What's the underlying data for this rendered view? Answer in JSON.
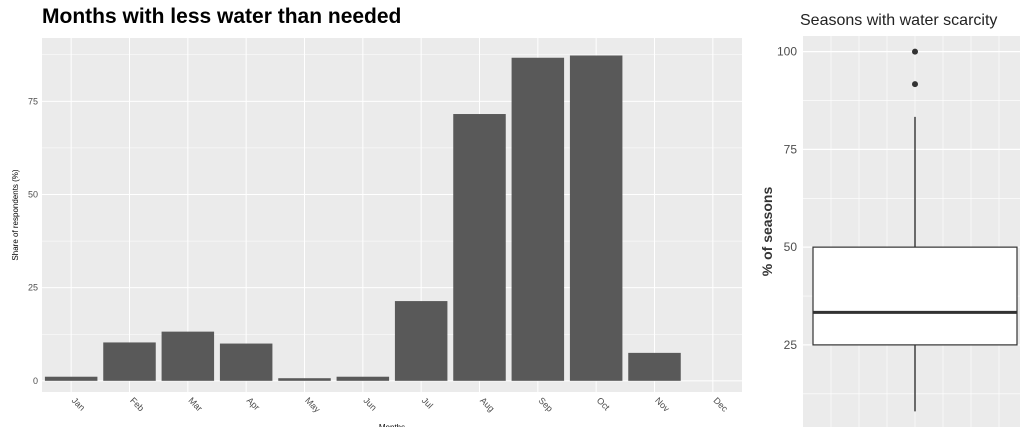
{
  "chart_data": [
    {
      "type": "bar",
      "title": "Months with less water than needed",
      "xlabel": "Months",
      "ylabel": "Share of respondents (%)",
      "categories": [
        "Jan",
        "Feb",
        "Mar",
        "Apr",
        "May",
        "Jun",
        "Jul",
        "Aug",
        "Sep",
        "Oct",
        "Nov",
        "Dec"
      ],
      "values": [
        1.1,
        10.3,
        13.2,
        10.0,
        0.7,
        1.1,
        21.4,
        71.6,
        86.7,
        87.3,
        7.5,
        0
      ],
      "yticks": [
        "0",
        "25",
        "50",
        "75"
      ],
      "ylim": [
        -3,
        92
      ],
      "grid": true,
      "colors": {
        "bar": "#595959",
        "panel": "#ebebeb",
        "grid": "#ffffff"
      }
    },
    {
      "type": "box",
      "title": "Seasons with water scarcity",
      "xlabel": "",
      "ylabel": "% of seasons",
      "yticks": [
        "25",
        "50",
        "75",
        "100"
      ],
      "ylim": [
        4,
        104
      ],
      "box": {
        "min": 8,
        "q1": 25,
        "median": 33.3,
        "q3": 50,
        "max": 83.3,
        "outliers": [
          91.7,
          100
        ]
      },
      "grid": true,
      "colors": {
        "box_fill": "#ffffff",
        "line": "#333333",
        "panel": "#ebebeb",
        "grid": "#ffffff"
      }
    }
  ]
}
